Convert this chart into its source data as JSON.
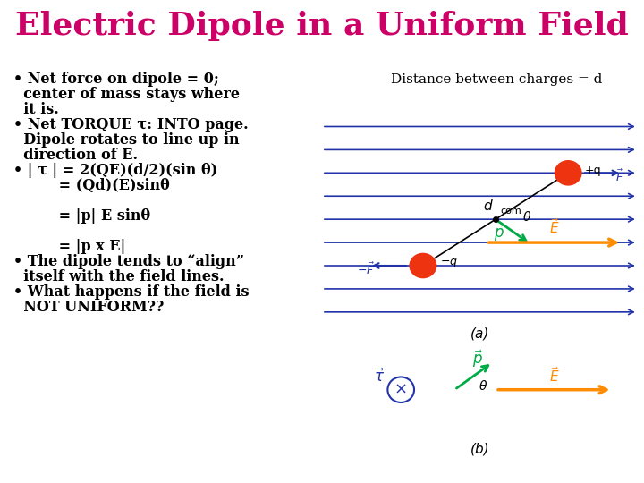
{
  "title": "Electric Dipole in a Uniform Field",
  "title_color": "#CC0066",
  "title_fontsize": 26,
  "bg_color": "#FFFFFF",
  "bullet_color": "#000000",
  "bullet_fontsize": 11.5,
  "dist_label": "Distance between charges = d",
  "field_line_color": "#2233AA",
  "field_arrow_color": "#FF8C00",
  "dipole_color": "#00AA44",
  "charge_color": "#EE3311",
  "label_a": "(a)",
  "label_b": "(b)"
}
